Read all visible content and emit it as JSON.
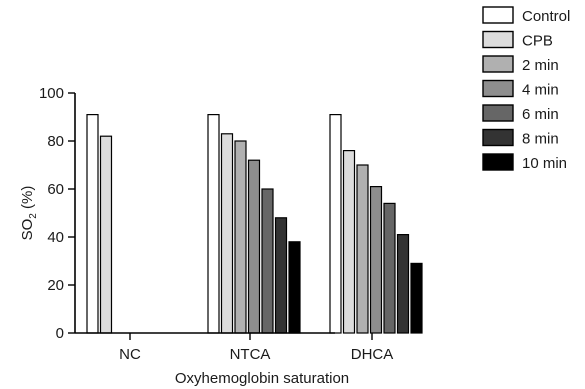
{
  "chart_data": {
    "type": "bar",
    "categories": [
      "NC",
      "NTCA",
      "DHCA"
    ],
    "xlabel": "Oxyhemoglobin saturation",
    "ylabel_main": "SO",
    "ylabel_sub": "2",
    "ylabel_suffix": " (%)",
    "ylim": [
      0,
      100
    ],
    "yticks": [
      0,
      20,
      40,
      60,
      80,
      100
    ],
    "grid": false,
    "legend_position": "top-right",
    "series": [
      {
        "name": "Control",
        "color": "#ffffff",
        "values": [
          91,
          91,
          91
        ]
      },
      {
        "name": "CPB",
        "color": "#dcdcdc",
        "values": [
          82,
          83,
          76
        ]
      },
      {
        "name": "2 min",
        "color": "#b0b0b0",
        "values": [
          null,
          80,
          70
        ]
      },
      {
        "name": "4 min",
        "color": "#8e8e8e",
        "values": [
          null,
          72,
          61
        ]
      },
      {
        "name": "6 min",
        "color": "#666666",
        "values": [
          null,
          60,
          54
        ]
      },
      {
        "name": "8 min",
        "color": "#333333",
        "values": [
          null,
          48,
          41
        ]
      },
      {
        "name": "10 min",
        "color": "#000000",
        "values": [
          null,
          38,
          29
        ]
      }
    ]
  }
}
